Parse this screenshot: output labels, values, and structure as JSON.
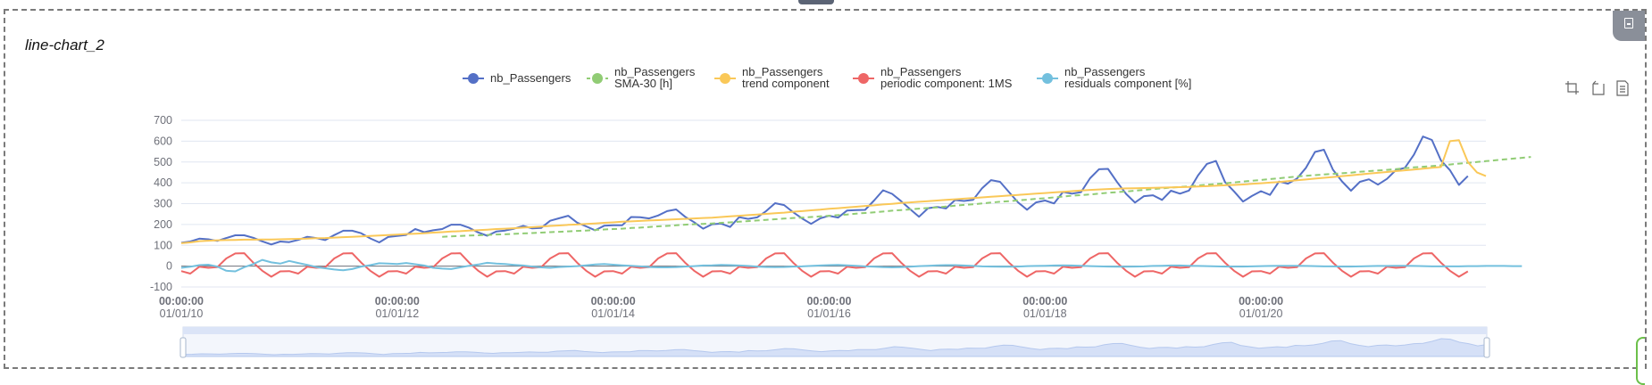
{
  "panel": {
    "title": "line-chart_2"
  },
  "toolbox": {
    "icons": [
      "zoom-icon",
      "zoom-reset-icon",
      "data-view-icon"
    ]
  },
  "chart_data": {
    "type": "line",
    "title": "line-chart_2",
    "ylim": [
      -100,
      700
    ],
    "yticks": [
      -100,
      0,
      100,
      200,
      300,
      400,
      500,
      600,
      700
    ],
    "xrange": [
      "2010-01-01",
      "2022-01-01"
    ],
    "xticks": [
      {
        "time": "00:00:00",
        "date": "01/01/10"
      },
      {
        "time": "00:00:00",
        "date": "01/01/12"
      },
      {
        "time": "00:00:00",
        "date": "01/01/14"
      },
      {
        "time": "00:00:00",
        "date": "01/01/16"
      },
      {
        "time": "00:00:00",
        "date": "01/01/18"
      },
      {
        "time": "00:00:00",
        "date": "01/01/20"
      }
    ],
    "legend_position": "top-center",
    "grid": true,
    "series": [
      {
        "name": "nb_Passengers",
        "name2": "",
        "color": "#5470c6",
        "dashed": false,
        "start_index": 0,
        "values": [
          112,
          118,
          132,
          129,
          121,
          135,
          148,
          148,
          136,
          119,
          104,
          118,
          115,
          126,
          141,
          135,
          125,
          149,
          170,
          170,
          158,
          133,
          114,
          140,
          145,
          150,
          178,
          163,
          172,
          178,
          199,
          199,
          184,
          162,
          146,
          166,
          171,
          180,
          193,
          181,
          183,
          218,
          230,
          242,
          209,
          191,
          172,
          194,
          196,
          196,
          236,
          235,
          229,
          243,
          264,
          272,
          237,
          211,
          180,
          201,
          204,
          188,
          235,
          227,
          234,
          264,
          302,
          293,
          259,
          229,
          203,
          229,
          242,
          233,
          267,
          269,
          270,
          315,
          364,
          347,
          312,
          274,
          237,
          278,
          284,
          277,
          317,
          313,
          318,
          374,
          413,
          405,
          355,
          306,
          271,
          306,
          315,
          301,
          356,
          348,
          355,
          422,
          465,
          467,
          404,
          347,
          305,
          336,
          340,
          318,
          362,
          348,
          363,
          435,
          491,
          505,
          404,
          359,
          310,
          337,
          360,
          342,
          406,
          396,
          420,
          472,
          548,
          559,
          463,
          407,
          362,
          405,
          417,
          391,
          419,
          461,
          472,
          535,
          622,
          606,
          508,
          461,
          390,
          432
        ]
      },
      {
        "name": "nb_Passengers",
        "name2": "SMA-30 [h]",
        "color": "#91cc75",
        "dashed": true,
        "start_index": 29,
        "values": [
          141,
          143,
          145,
          147,
          148,
          150,
          152,
          153,
          155,
          157,
          159,
          161,
          163,
          165,
          167,
          169,
          171,
          174,
          176,
          178,
          180,
          183,
          185,
          188,
          191,
          193,
          196,
          199,
          201,
          203,
          205,
          208,
          210,
          213,
          216,
          219,
          222,
          225,
          228,
          231,
          233,
          236,
          239,
          242,
          245,
          248,
          252,
          255,
          258,
          262,
          266,
          269,
          272,
          276,
          279,
          282,
          286,
          290,
          294,
          297,
          301,
          305,
          309,
          312,
          316,
          319,
          323,
          326,
          330,
          334,
          338,
          341,
          344,
          348,
          352,
          355,
          358,
          362,
          366,
          370,
          373,
          377,
          380,
          383,
          387,
          391,
          394,
          398,
          402,
          406,
          410,
          414,
          418,
          422,
          426,
          430,
          434,
          437,
          440,
          443,
          446,
          449,
          453,
          456,
          459,
          462,
          466,
          470,
          474,
          477,
          480,
          484,
          488,
          492,
          496,
          500,
          504,
          508,
          512,
          516,
          520,
          524
        ]
      },
      {
        "name": "nb_Passengers",
        "name2": "trend component",
        "color": "#fac858",
        "dashed": false,
        "start_index": 0,
        "values": [
          110,
          114,
          120,
          122,
          124,
          125,
          126,
          127,
          127,
          128,
          128,
          129,
          130,
          131,
          132,
          134,
          135,
          137,
          139,
          141,
          143,
          145,
          147,
          149,
          151,
          154,
          156,
          158,
          161,
          163,
          166,
          168,
          171,
          173,
          175,
          178,
          180,
          182,
          185,
          187,
          190,
          193,
          195,
          198,
          200,
          203,
          205,
          208,
          210,
          213,
          215,
          217,
          219,
          221,
          223,
          225,
          227,
          229,
          231,
          233,
          236,
          239,
          242,
          245,
          248,
          251,
          254,
          257,
          261,
          264,
          268,
          271,
          275,
          278,
          282,
          285,
          289,
          292,
          296,
          299,
          303,
          306,
          309,
          312,
          315,
          318,
          321,
          324,
          327,
          330,
          333,
          336,
          339,
          342,
          345,
          348,
          351,
          354,
          357,
          360,
          363,
          366,
          368,
          370,
          372,
          373,
          374,
          375,
          376,
          377,
          378,
          379,
          380,
          382,
          384,
          386,
          388,
          390,
          392,
          395,
          398,
          401,
          404,
          408,
          412,
          416,
          420,
          424,
          428,
          432,
          436,
          440,
          444,
          448,
          452,
          456,
          460,
          464,
          468,
          472,
          476,
          600,
          605,
          500,
          450,
          432
        ]
      },
      {
        "name": "nb_Passengers",
        "name2": "periodic component: 1MS",
        "color": "#ee6666",
        "dashed": false,
        "start_index": 0,
        "values": [
          -24,
          -36,
          -3,
          -8,
          -5,
          37,
          61,
          62,
          17,
          -22,
          -51,
          -25,
          -24,
          -36,
          -3,
          -8,
          -5,
          37,
          61,
          62,
          17,
          -22,
          -51,
          -25,
          -24,
          -36,
          -3,
          -8,
          -5,
          37,
          61,
          62,
          17,
          -22,
          -51,
          -25,
          -24,
          -36,
          -3,
          -8,
          -5,
          37,
          61,
          62,
          17,
          -22,
          -51,
          -25,
          -24,
          -36,
          -3,
          -8,
          -5,
          37,
          61,
          62,
          17,
          -22,
          -51,
          -25,
          -24,
          -36,
          -3,
          -8,
          -5,
          37,
          61,
          62,
          17,
          -22,
          -51,
          -25,
          -24,
          -36,
          -3,
          -8,
          -5,
          37,
          61,
          62,
          17,
          -22,
          -51,
          -25,
          -24,
          -36,
          -3,
          -8,
          -5,
          37,
          61,
          62,
          17,
          -22,
          -51,
          -25,
          -24,
          -36,
          -3,
          -8,
          -5,
          37,
          61,
          62,
          17,
          -22,
          -51,
          -25,
          -24,
          -36,
          -3,
          -8,
          -5,
          37,
          61,
          62,
          17,
          -22,
          -51,
          -25,
          -24,
          -36,
          -3,
          -8,
          -5,
          37,
          61,
          62,
          17,
          -22,
          -51,
          -25,
          -24,
          -36,
          -3,
          -8,
          -5,
          37,
          61,
          62,
          17,
          -22,
          -51,
          -25
        ]
      },
      {
        "name": "nb_Passengers",
        "name2": "residuals component [%]",
        "color": "#73c0de",
        "dashed": false,
        "start_index": 0,
        "values": [
          -8,
          -3,
          5,
          7,
          -2,
          -22,
          -25,
          -5,
          10,
          30,
          18,
          12,
          25,
          15,
          6,
          -4,
          -10,
          -16,
          -20,
          -14,
          -2,
          5,
          14,
          12,
          10,
          15,
          9,
          3,
          -8,
          -12,
          -14,
          -6,
          2,
          8,
          16,
          12,
          10,
          6,
          3,
          -2,
          -6,
          -8,
          -4,
          -2,
          0,
          4,
          8,
          10,
          7,
          4,
          2,
          -1,
          -4,
          -6,
          -6,
          -5,
          -2,
          0,
          3,
          4,
          6,
          5,
          3,
          1,
          -2,
          -4,
          -5,
          -4,
          -2,
          -1,
          1,
          3,
          5,
          6,
          4,
          2,
          -1,
          -3,
          -5,
          -6,
          -5,
          -3,
          0,
          2,
          4,
          5,
          5,
          3,
          1,
          -1,
          -2,
          -3,
          -3,
          -2,
          0,
          1,
          2,
          3,
          4,
          3,
          2,
          0,
          -1,
          -2,
          -3,
          -3,
          -2,
          -1,
          1,
          2,
          3,
          3,
          2,
          1,
          0,
          -1,
          -2,
          -2,
          -2,
          -1,
          0,
          1,
          2,
          2,
          2,
          1,
          0,
          -1,
          -1,
          -2,
          -2,
          -1,
          0,
          1,
          1,
          2,
          2,
          1,
          0,
          -1,
          -1,
          -1,
          -1,
          0,
          0,
          1,
          1,
          1,
          0,
          0
        ]
      }
    ]
  }
}
